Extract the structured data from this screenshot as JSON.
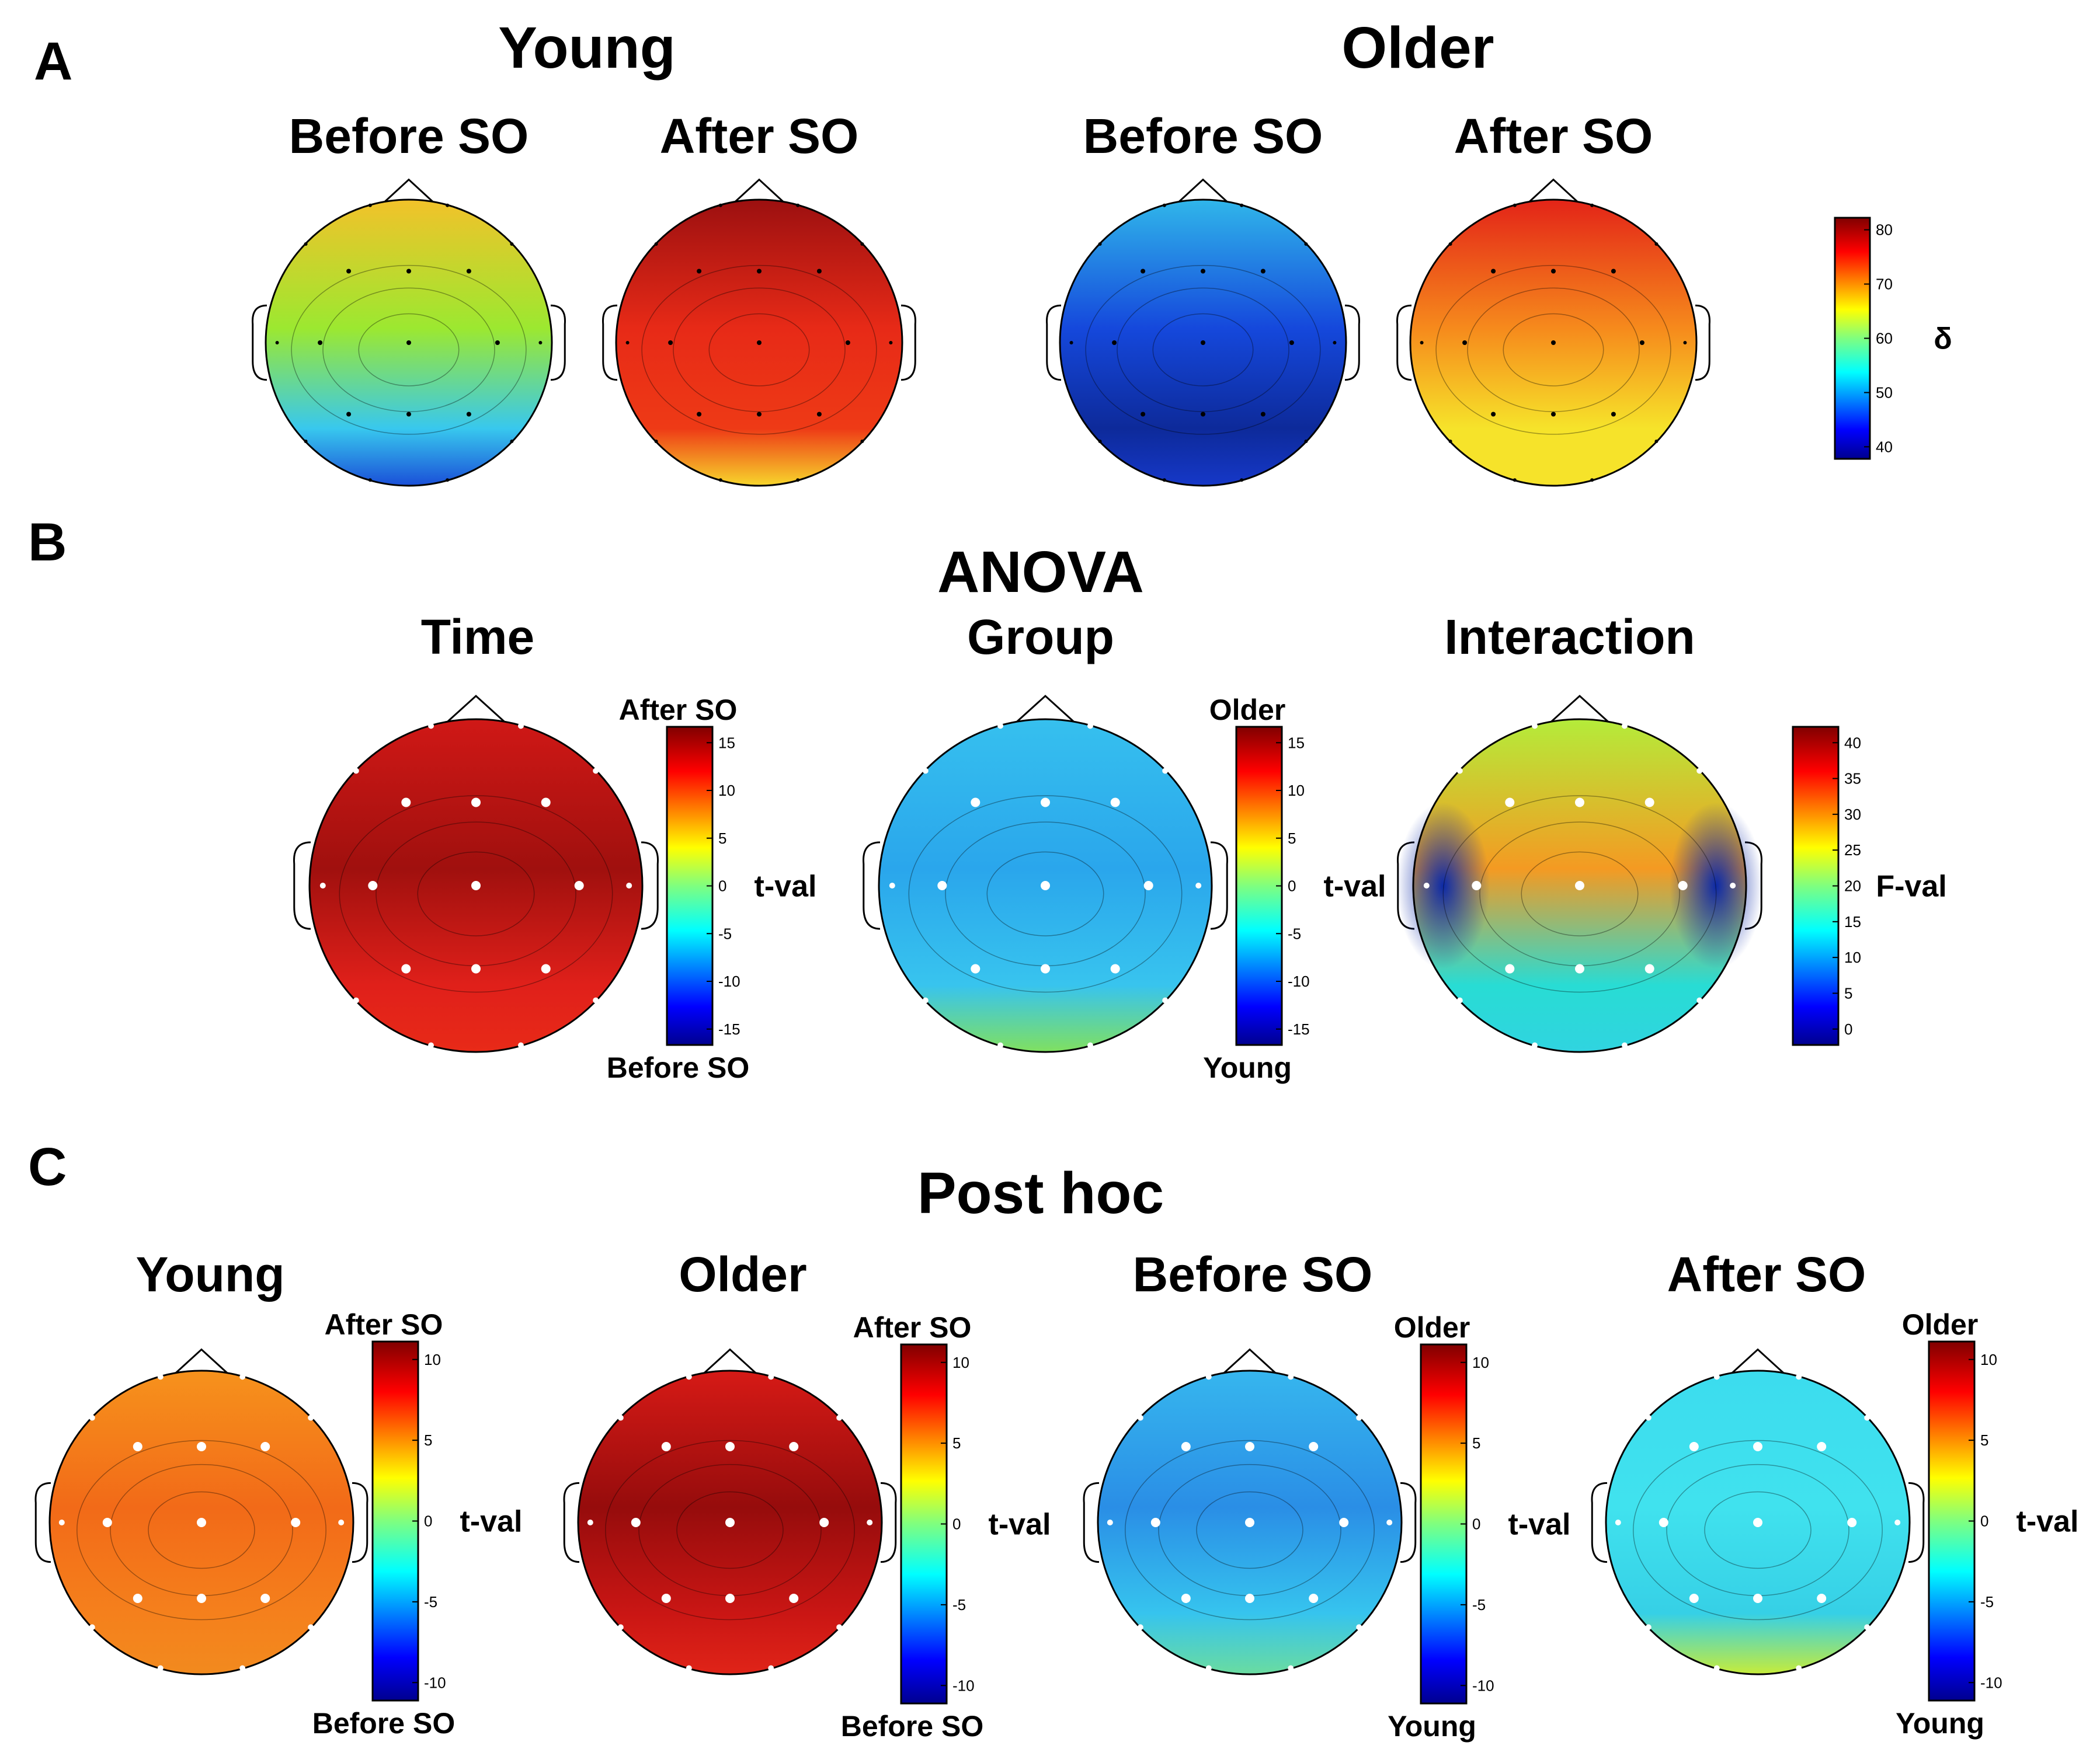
{
  "panel_labels": {
    "a": "A",
    "b": "B",
    "c": "C"
  },
  "panel_a": {
    "young_title": "Young",
    "older_title": "Older",
    "maps": [
      {
        "label": "Before SO",
        "colors": {
          "front": "#f2c22a",
          "mid": "#9ce830",
          "back": "#38c8ee",
          "backside": "#1a4fd8"
        }
      },
      {
        "label": "After SO",
        "colors": {
          "front": "#9c1010",
          "mid": "#e72a17",
          "back": "#ee3a16",
          "backside": "#f7d62c"
        }
      },
      {
        "label": "Before SO",
        "colors": {
          "front": "#30b6ea",
          "mid": "#1548dc",
          "back": "#0d2a9a",
          "backside": "#1638c8"
        }
      },
      {
        "label": "After SO",
        "colors": {
          "front": "#e32418",
          "mid": "#f68a1c",
          "back": "#f6e32a",
          "backside": "#f6e32a"
        }
      }
    ],
    "colorbar": {
      "ticks": [
        "80",
        "70",
        "60",
        "50",
        "40"
      ],
      "label": "δ"
    }
  },
  "panel_b": {
    "heading": "ANOVA",
    "maps": [
      {
        "title": "Time",
        "top_label": "After SO",
        "bottom_label": "Before SO",
        "cb_label": "t-val",
        "ticks": [
          "15",
          "10",
          "5",
          "0",
          "-5",
          "-10",
          "-15"
        ],
        "colors": {
          "front": "#d01816",
          "mid": "#a0100e",
          "back": "#e0201a",
          "backside": "#e82a18"
        }
      },
      {
        "title": "Group",
        "top_label": "Older",
        "bottom_label": "Young",
        "cb_label": "t-val",
        "ticks": [
          "15",
          "10",
          "5",
          "0",
          "-5",
          "-10",
          "-15"
        ],
        "colors": {
          "front": "#36c0ee",
          "mid": "#2aa6ec",
          "back": "#38c4ee",
          "backside": "#80e060"
        }
      },
      {
        "title": "Interaction",
        "top_label": "",
        "bottom_label": "",
        "cb_label": "F-val",
        "ticks": [
          "40",
          "35",
          "30",
          "25",
          "20",
          "15",
          "10",
          "5",
          "0"
        ],
        "colors": {
          "front": "#b4ec3a",
          "mid": "#f49a22",
          "back": "#28dcd4",
          "backside": "#30d4e0",
          "sides": "#0c2aa8"
        }
      }
    ]
  },
  "panel_c": {
    "heading": "Post hoc",
    "maps": [
      {
        "title": "Young",
        "top_label": "After SO",
        "bottom_label": "Before SO",
        "cb_label": "t-val",
        "ticks": [
          "10",
          "5",
          "0",
          "-5",
          "-10"
        ],
        "colors": {
          "front": "#f6921c",
          "mid": "#f26a18",
          "back": "#f5801c",
          "backside": "#f28a1e"
        }
      },
      {
        "title": "Older",
        "top_label": "After SO",
        "bottom_label": "Before SO",
        "cb_label": "t-val",
        "ticks": [
          "10",
          "5",
          "0",
          "-5",
          "-10"
        ],
        "colors": {
          "front": "#d61a16",
          "mid": "#960c0c",
          "back": "#ca1614",
          "backside": "#e02418"
        }
      },
      {
        "title": "Before SO",
        "top_label": "Older",
        "bottom_label": "Young",
        "cb_label": "t-val",
        "ticks": [
          "10",
          "5",
          "0",
          "-5",
          "-10"
        ],
        "colors": {
          "front": "#36b6ee",
          "mid": "#2a8ee6",
          "back": "#36c4ee",
          "backside": "#6adca0"
        }
      },
      {
        "title": "After SO",
        "top_label": "Older",
        "bottom_label": "Young",
        "cb_label": "t-val",
        "ticks": [
          "10",
          "5",
          "0",
          "-5",
          "-10"
        ],
        "colors": {
          "front": "#3cdcee",
          "mid": "#40e2ee",
          "back": "#36d0e6",
          "backside": "#c6ec3a"
        }
      }
    ]
  }
}
